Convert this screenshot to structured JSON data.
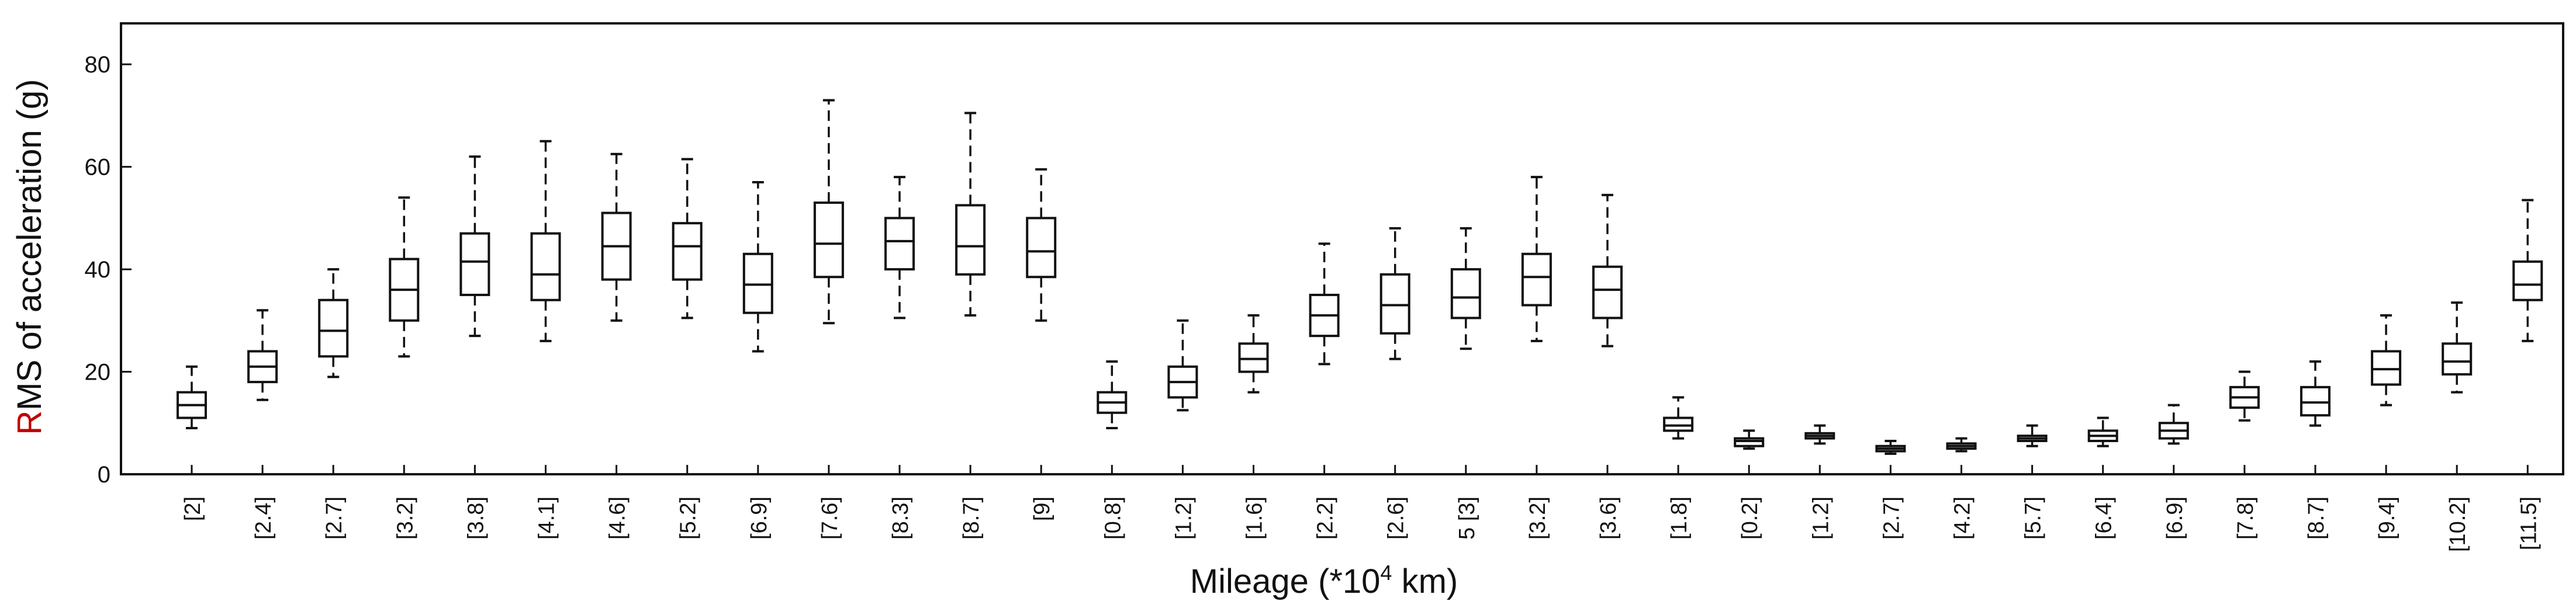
{
  "chart_data": {
    "type": "box",
    "title": "",
    "xlabel_prefix": "Mileage (*10",
    "xlabel_sup": "4",
    "xlabel_suffix": " km)",
    "ylabel_first": "R",
    "ylabel_rest": "MS of acceleration (g)",
    "ylim": [
      0,
      88
    ],
    "yticks": [
      0,
      20,
      40,
      60,
      80
    ],
    "grid": false,
    "categories": [
      "[2]",
      "[2.4]",
      "[2.7]",
      "[3.2]",
      "[3.8]",
      "[4.1]",
      "[4.6]",
      "[5.2]",
      "[6.9]",
      "[7.6]",
      "[8.3]",
      "[8.7]",
      "[9]",
      "[0.8]",
      "[1.2]",
      "[1.6]",
      "[2.2]",
      "[2.6]",
      "5 [3]",
      "[3.2]",
      "[3.6]",
      "[1.8]",
      "[0.2]",
      "[1.2]",
      "[2.7]",
      "[4.2]",
      "[5.7]",
      "[6.4]",
      "[6.9]",
      "[7.8]",
      "[8.7]",
      "[9.4]",
      "[10.2]",
      "[11.5]"
    ],
    "boxes": [
      {
        "whisker_low": 9,
        "q1": 11,
        "median": 13.5,
        "q3": 16,
        "whisker_high": 21
      },
      {
        "whisker_low": 14.5,
        "q1": 18,
        "median": 21,
        "q3": 24,
        "whisker_high": 32
      },
      {
        "whisker_low": 19,
        "q1": 23,
        "median": 28,
        "q3": 34,
        "whisker_high": 40
      },
      {
        "whisker_low": 23,
        "q1": 30,
        "median": 36,
        "q3": 42,
        "whisker_high": 54
      },
      {
        "whisker_low": 27,
        "q1": 35,
        "median": 41.5,
        "q3": 47,
        "whisker_high": 62
      },
      {
        "whisker_low": 26,
        "q1": 34,
        "median": 39,
        "q3": 47,
        "whisker_high": 65
      },
      {
        "whisker_low": 30,
        "q1": 38,
        "median": 44.5,
        "q3": 51,
        "whisker_high": 62.5
      },
      {
        "whisker_low": 30.5,
        "q1": 38,
        "median": 44.5,
        "q3": 49,
        "whisker_high": 61.5
      },
      {
        "whisker_low": 24,
        "q1": 31.5,
        "median": 37,
        "q3": 43,
        "whisker_high": 57
      },
      {
        "whisker_low": 29.5,
        "q1": 38.5,
        "median": 45,
        "q3": 53,
        "whisker_high": 73
      },
      {
        "whisker_low": 30.5,
        "q1": 40,
        "median": 45.5,
        "q3": 50,
        "whisker_high": 58
      },
      {
        "whisker_low": 31,
        "q1": 39,
        "median": 44.5,
        "q3": 52.5,
        "whisker_high": 70.5
      },
      {
        "whisker_low": 30,
        "q1": 38.5,
        "median": 43.5,
        "q3": 50,
        "whisker_high": 59.5
      },
      {
        "whisker_low": 9,
        "q1": 12,
        "median": 14,
        "q3": 16,
        "whisker_high": 22
      },
      {
        "whisker_low": 12.5,
        "q1": 15,
        "median": 18,
        "q3": 21,
        "whisker_high": 30
      },
      {
        "whisker_low": 16,
        "q1": 20,
        "median": 22.5,
        "q3": 25.5,
        "whisker_high": 31
      },
      {
        "whisker_low": 21.5,
        "q1": 27,
        "median": 31,
        "q3": 35,
        "whisker_high": 45
      },
      {
        "whisker_low": 22.5,
        "q1": 27.5,
        "median": 33,
        "q3": 39,
        "whisker_high": 48
      },
      {
        "whisker_low": 24.5,
        "q1": 30.5,
        "median": 34.5,
        "q3": 40,
        "whisker_high": 48
      },
      {
        "whisker_low": 26,
        "q1": 33,
        "median": 38.5,
        "q3": 43,
        "whisker_high": 58
      },
      {
        "whisker_low": 25,
        "q1": 30.5,
        "median": 36,
        "q3": 40.5,
        "whisker_high": 54.5
      },
      {
        "whisker_low": 7,
        "q1": 8.5,
        "median": 9.5,
        "q3": 11,
        "whisker_high": 15
      },
      {
        "whisker_low": 5,
        "q1": 5.5,
        "median": 6.5,
        "q3": 7,
        "whisker_high": 8.5
      },
      {
        "whisker_low": 6,
        "q1": 7,
        "median": 7.5,
        "q3": 8,
        "whisker_high": 9.5
      },
      {
        "whisker_low": 4,
        "q1": 4.5,
        "median": 5,
        "q3": 5.5,
        "whisker_high": 6.5
      },
      {
        "whisker_low": 4.5,
        "q1": 5,
        "median": 5.5,
        "q3": 6,
        "whisker_high": 7
      },
      {
        "whisker_low": 5.5,
        "q1": 6.5,
        "median": 7,
        "q3": 7.5,
        "whisker_high": 9.5
      },
      {
        "whisker_low": 5.5,
        "q1": 6.5,
        "median": 7.5,
        "q3": 8.5,
        "whisker_high": 11
      },
      {
        "whisker_low": 6,
        "q1": 7,
        "median": 8.5,
        "q3": 10,
        "whisker_high": 13.5
      },
      {
        "whisker_low": 10.5,
        "q1": 13,
        "median": 15,
        "q3": 17,
        "whisker_high": 20
      },
      {
        "whisker_low": 9.5,
        "q1": 11.5,
        "median": 14,
        "q3": 17,
        "whisker_high": 22
      },
      {
        "whisker_low": 13.5,
        "q1": 17.5,
        "median": 20.5,
        "q3": 24,
        "whisker_high": 31
      },
      {
        "whisker_low": 16,
        "q1": 19.5,
        "median": 22,
        "q3": 25.5,
        "whisker_high": 33.5
      },
      {
        "whisker_low": 26,
        "q1": 34,
        "median": 37,
        "q3": 41.5,
        "whisker_high": 53.5
      }
    ],
    "colors": {
      "line": "#111111",
      "ylabel_first_letter": "#c00000"
    }
  }
}
